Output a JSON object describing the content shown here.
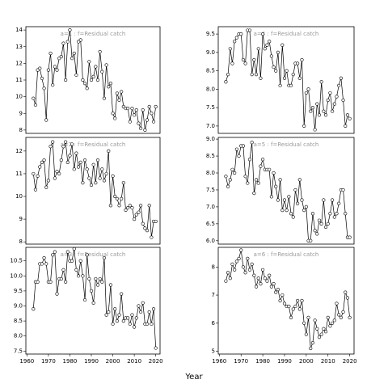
{
  "xlabel": "Year",
  "chart_data": [
    {
      "type": "line",
      "title": "a=1 : f=Residual catch",
      "xlim": [
        1959.5,
        2022
      ],
      "ylim": [
        7.8,
        14.2
      ],
      "yticks": [
        8,
        9,
        10,
        11,
        12,
        13,
        14
      ],
      "x": [
        1963,
        1964,
        1965,
        1966,
        1967,
        1968,
        1969,
        1970,
        1971,
        1972,
        1973,
        1974,
        1975,
        1976,
        1977,
        1978,
        1979,
        1980,
        1981,
        1982,
        1983,
        1984,
        1985,
        1986,
        1987,
        1988,
        1989,
        1990,
        1991,
        1992,
        1993,
        1994,
        1995,
        1996,
        1997,
        1998,
        1999,
        2000,
        2001,
        2002,
        2003,
        2004,
        2005,
        2006,
        2007,
        2008,
        2009,
        2010,
        2011,
        2012,
        2013,
        2014,
        2015,
        2016,
        2017,
        2018,
        2019,
        2020
      ],
      "values": [
        9.9,
        9.5,
        11.6,
        11.7,
        11.1,
        10.5,
        8.6,
        11.6,
        12.6,
        10.7,
        11.8,
        11.6,
        12.3,
        12.4,
        13.2,
        11.0,
        13.3,
        14.0,
        12.3,
        12.6,
        11.3,
        13.3,
        13.4,
        11.0,
        10.8,
        10.5,
        12.1,
        11.0,
        11.2,
        11.8,
        11.0,
        12.7,
        11.5,
        9.9,
        11.9,
        10.6,
        10.8,
        9.0,
        8.7,
        10.2,
        9.8,
        10.3,
        9.4,
        9.3,
        9.3,
        8.5,
        9.3,
        8.9,
        9.2,
        8.4,
        8.1,
        9.2,
        8.0,
        8.6,
        9.4,
        9.0,
        8.5,
        9.4
      ]
    },
    {
      "type": "line",
      "title": "a=2 : f=Residual catch",
      "xlim": [
        1959.5,
        2022
      ],
      "ylim": [
        7.9,
        12.6
      ],
      "yticks": [
        8,
        9,
        10,
        11,
        12
      ],
      "x": [
        1963,
        1964,
        1965,
        1966,
        1967,
        1968,
        1969,
        1970,
        1971,
        1972,
        1973,
        1974,
        1975,
        1976,
        1977,
        1978,
        1979,
        1980,
        1981,
        1982,
        1983,
        1984,
        1985,
        1986,
        1987,
        1988,
        1989,
        1990,
        1991,
        1992,
        1993,
        1994,
        1995,
        1996,
        1997,
        1998,
        1999,
        2000,
        2001,
        2002,
        2003,
        2004,
        2005,
        2006,
        2007,
        2008,
        2009,
        2010,
        2011,
        2012,
        2013,
        2014,
        2015,
        2016,
        2017,
        2018,
        2019,
        2020
      ],
      "values": [
        11.0,
        10.3,
        10.9,
        11.3,
        11.5,
        11.6,
        10.4,
        10.7,
        12.2,
        12.4,
        10.8,
        11.1,
        11.0,
        11.6,
        12.2,
        12.4,
        11.5,
        11.8,
        12.3,
        11.2,
        11.9,
        11.3,
        11.5,
        10.6,
        11.6,
        11.2,
        10.8,
        10.5,
        11.4,
        10.6,
        11.6,
        10.8,
        11.2,
        10.7,
        11.0,
        12.0,
        9.6,
        10.9,
        10.0,
        9.9,
        9.6,
        9.9,
        10.6,
        9.4,
        9.5,
        9.6,
        9.5,
        9.0,
        9.2,
        9.3,
        9.6,
        8.8,
        8.6,
        8.5,
        9.6,
        8.2,
        8.9,
        8.9
      ]
    },
    {
      "type": "line",
      "title": "a=3 : f=Residual catch",
      "xlim": [
        1959.5,
        2022
      ],
      "ylim": [
        7.4,
        10.95
      ],
      "yticks": [
        {
          "value": 7.5,
          "label": "7.5"
        },
        {
          "value": 8,
          "label": "8.0"
        },
        {
          "value": 8.5,
          "label": "8.5"
        },
        {
          "value": 9,
          "label": "9.0"
        },
        {
          "value": 9.5,
          "label": "9.5"
        },
        {
          "value": 10,
          "label": "10.0"
        },
        {
          "value": 10.5,
          "label": "10.5"
        }
      ],
      "xticks": [
        1960,
        1970,
        1980,
        1990,
        2000,
        2010,
        2020
      ],
      "x": [
        1963,
        1964,
        1965,
        1966,
        1967,
        1968,
        1969,
        1970,
        1971,
        1972,
        1973,
        1974,
        1975,
        1976,
        1977,
        1978,
        1979,
        1980,
        1981,
        1982,
        1983,
        1984,
        1985,
        1986,
        1987,
        1988,
        1989,
        1990,
        1991,
        1992,
        1993,
        1994,
        1995,
        1996,
        1997,
        1998,
        1999,
        2000,
        2001,
        2002,
        2003,
        2004,
        2005,
        2006,
        2007,
        2008,
        2009,
        2010,
        2011,
        2012,
        2013,
        2014,
        2015,
        2016,
        2017,
        2018,
        2019,
        2020
      ],
      "values": [
        8.9,
        9.8,
        9.8,
        10.4,
        10.4,
        10.6,
        10.4,
        9.8,
        9.8,
        10.7,
        10.8,
        9.4,
        9.9,
        9.9,
        10.2,
        9.8,
        10.8,
        10.5,
        10.5,
        10.9,
        10.2,
        10.0,
        10.5,
        10.0,
        9.2,
        10.7,
        9.9,
        9.5,
        9.1,
        9.9,
        9.7,
        9.9,
        9.8,
        10.6,
        8.7,
        8.8,
        9.7,
        8.4,
        8.9,
        8.5,
        8.7,
        9.4,
        8.5,
        8.6,
        8.6,
        8.4,
        8.7,
        8.3,
        8.6,
        9.0,
        8.8,
        9.1,
        8.4,
        8.4,
        8.8,
        8.4,
        8.9,
        7.6
      ]
    },
    {
      "type": "line",
      "title": "a=4 : f=Residual catch",
      "xlim": [
        1959.5,
        2022
      ],
      "ylim": [
        6.8,
        9.7
      ],
      "yticks": [
        {
          "value": 7,
          "label": "7.0"
        },
        {
          "value": 7.5,
          "label": "7.5"
        },
        {
          "value": 8,
          "label": "8.0"
        },
        {
          "value": 8.5,
          "label": "8.5"
        },
        {
          "value": 9,
          "label": "9.0"
        },
        {
          "value": 9.5,
          "label": "9.5"
        }
      ],
      "x": [
        1963,
        1964,
        1965,
        1966,
        1967,
        1968,
        1969,
        1970,
        1971,
        1972,
        1973,
        1974,
        1975,
        1976,
        1977,
        1978,
        1979,
        1980,
        1981,
        1982,
        1983,
        1984,
        1985,
        1986,
        1987,
        1988,
        1989,
        1990,
        1991,
        1992,
        1993,
        1994,
        1995,
        1996,
        1997,
        1998,
        1999,
        2000,
        2001,
        2002,
        2003,
        2004,
        2005,
        2006,
        2007,
        2008,
        2009,
        2010,
        2011,
        2012,
        2013,
        2014,
        2015,
        2016,
        2017,
        2018,
        2019,
        2020
      ],
      "values": [
        8.2,
        8.4,
        9.1,
        8.7,
        9.3,
        9.4,
        9.5,
        9.5,
        8.8,
        8.7,
        9.6,
        9.6,
        8.4,
        8.8,
        8.4,
        9.1,
        8.3,
        9.5,
        9.1,
        9.2,
        9.3,
        8.9,
        8.6,
        8.5,
        9.0,
        8.1,
        9.2,
        8.3,
        8.5,
        8.1,
        8.1,
        8.4,
        8.7,
        8.7,
        8.3,
        8.8,
        7.0,
        7.9,
        8.0,
        7.4,
        7.5,
        6.9,
        7.6,
        7.3,
        8.2,
        7.4,
        7.3,
        7.7,
        7.9,
        7.4,
        7.6,
        7.8,
        8.1,
        8.3,
        7.7,
        7.0,
        7.3,
        7.2
      ]
    },
    {
      "type": "line",
      "title": "a=5 : f=Residual catch",
      "xlim": [
        1959.5,
        2022
      ],
      "ylim": [
        5.9,
        9.05
      ],
      "yticks": [
        {
          "value": 6,
          "label": "6.0"
        },
        {
          "value": 6.5,
          "label": "6.5"
        },
        {
          "value": 7,
          "label": "7.0"
        },
        {
          "value": 7.5,
          "label": "7.5"
        },
        {
          "value": 8,
          "label": "8.0"
        },
        {
          "value": 8.5,
          "label": "8.5"
        },
        {
          "value": 9,
          "label": "9.0"
        }
      ],
      "x": [
        1963,
        1964,
        1965,
        1966,
        1967,
        1968,
        1969,
        1970,
        1971,
        1972,
        1973,
        1974,
        1975,
        1976,
        1977,
        1978,
        1979,
        1980,
        1981,
        1982,
        1983,
        1984,
        1985,
        1986,
        1987,
        1988,
        1989,
        1990,
        1991,
        1992,
        1993,
        1994,
        1995,
        1996,
        1997,
        1998,
        1999,
        2000,
        2001,
        2002,
        2003,
        2004,
        2005,
        2006,
        2007,
        2008,
        2009,
        2010,
        2011,
        2012,
        2013,
        2014,
        2015,
        2016,
        2017,
        2018,
        2019,
        2020
      ],
      "values": [
        7.9,
        7.6,
        7.8,
        8.1,
        8.0,
        8.7,
        8.5,
        8.8,
        8.8,
        7.9,
        7.7,
        8.4,
        8.9,
        7.4,
        7.8,
        7.7,
        8.2,
        8.4,
        8.1,
        8.1,
        8.1,
        7.3,
        8.0,
        7.6,
        7.2,
        7.8,
        6.9,
        7.2,
        6.9,
        7.3,
        6.8,
        6.7,
        7.5,
        7.1,
        7.8,
        7.2,
        6.9,
        7.0,
        6.0,
        6.0,
        6.8,
        6.3,
        6.2,
        6.6,
        6.5,
        7.2,
        6.4,
        6.5,
        6.8,
        7.2,
        6.7,
        6.8,
        7.1,
        7.5,
        7.5,
        6.8,
        6.1,
        6.1
      ]
    },
    {
      "type": "line",
      "title": "a=6 : f=Residual catch",
      "xlim": [
        1959.5,
        2022
      ],
      "ylim": [
        4.9,
        8.7
      ],
      "yticks": [
        5,
        6,
        7,
        8
      ],
      "xticks": [
        1960,
        1970,
        1980,
        1990,
        2000,
        2010,
        2020
      ],
      "x": [
        1963,
        1964,
        1965,
        1966,
        1967,
        1968,
        1969,
        1970,
        1971,
        1972,
        1973,
        1974,
        1975,
        1976,
        1977,
        1978,
        1979,
        1980,
        1981,
        1982,
        1983,
        1984,
        1985,
        1986,
        1987,
        1988,
        1989,
        1990,
        1991,
        1992,
        1993,
        1994,
        1995,
        1996,
        1997,
        1998,
        1999,
        2000,
        2001,
        2002,
        2003,
        2004,
        2005,
        2006,
        2007,
        2008,
        2009,
        2010,
        2011,
        2012,
        2013,
        2014,
        2015,
        2016,
        2017,
        2018,
        2019,
        2020
      ],
      "values": [
        7.5,
        7.8,
        7.6,
        8.1,
        7.9,
        8.2,
        8.3,
        8.6,
        8.0,
        7.8,
        8.3,
        7.9,
        8.1,
        7.7,
        7.3,
        7.6,
        7.4,
        7.9,
        7.6,
        7.5,
        7.7,
        7.3,
        7.4,
        7.1,
        7.2,
        6.8,
        7.0,
        6.7,
        6.6,
        6.6,
        6.2,
        6.5,
        6.6,
        6.8,
        6.5,
        6.8,
        6.0,
        5.6,
        6.2,
        5.1,
        5.3,
        6.1,
        5.8,
        5.5,
        5.6,
        5.8,
        5.7,
        6.2,
        5.9,
        6.0,
        6.1,
        6.7,
        6.3,
        6.2,
        6.4,
        7.1,
        6.9,
        6.2
      ]
    }
  ]
}
